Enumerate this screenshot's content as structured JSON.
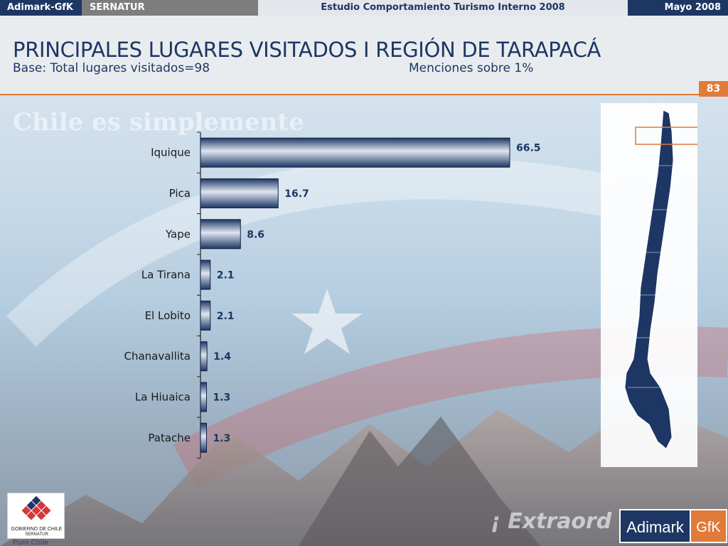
{
  "header": {
    "brand": "Adimark-GfK",
    "client": "SERNATUR",
    "study": "Estudio Comportamiento Turismo Interno 2008",
    "date": "Mayo 2008"
  },
  "slide": {
    "title": "PRINCIPALES LUGARES VISITADOS I REGIÓN DE TARAPACÁ",
    "base": "Base: Total lugares visitados=98",
    "mentions": "Menciones sobre 1%",
    "page_number": "83"
  },
  "background": {
    "watermark": "Chile es simplemente",
    "tagline": "¡ Extraord"
  },
  "colors": {
    "brand_navy": "#1d3664",
    "accent_orange": "#e07b39",
    "bar_dark": "#1d3664",
    "bar_light": "#dfe6f0"
  },
  "chart_data": {
    "type": "bar",
    "orientation": "horizontal",
    "categories": [
      "Iquique",
      "Pica",
      "Yape",
      "La Tirana",
      "El Lobito",
      "Chanavallita",
      "La Hiuaica",
      "Patache"
    ],
    "values": [
      66.5,
      16.7,
      8.6,
      2.1,
      2.1,
      1.4,
      1.3,
      1.3
    ],
    "title": "",
    "xlabel": "",
    "ylabel": "",
    "xlim": [
      0,
      100
    ],
    "grid": false,
    "legend": "none"
  },
  "map": {
    "icon": "chile-map-icon",
    "highlight": "Región de Tarapacá"
  },
  "logos": {
    "gov_line1": "GOBIERNO DE CHILE",
    "gov_line2": "SERNATUR",
    "gov_motto": "Puro Chile",
    "company_a": "Adimark",
    "company_b": "GfK"
  }
}
